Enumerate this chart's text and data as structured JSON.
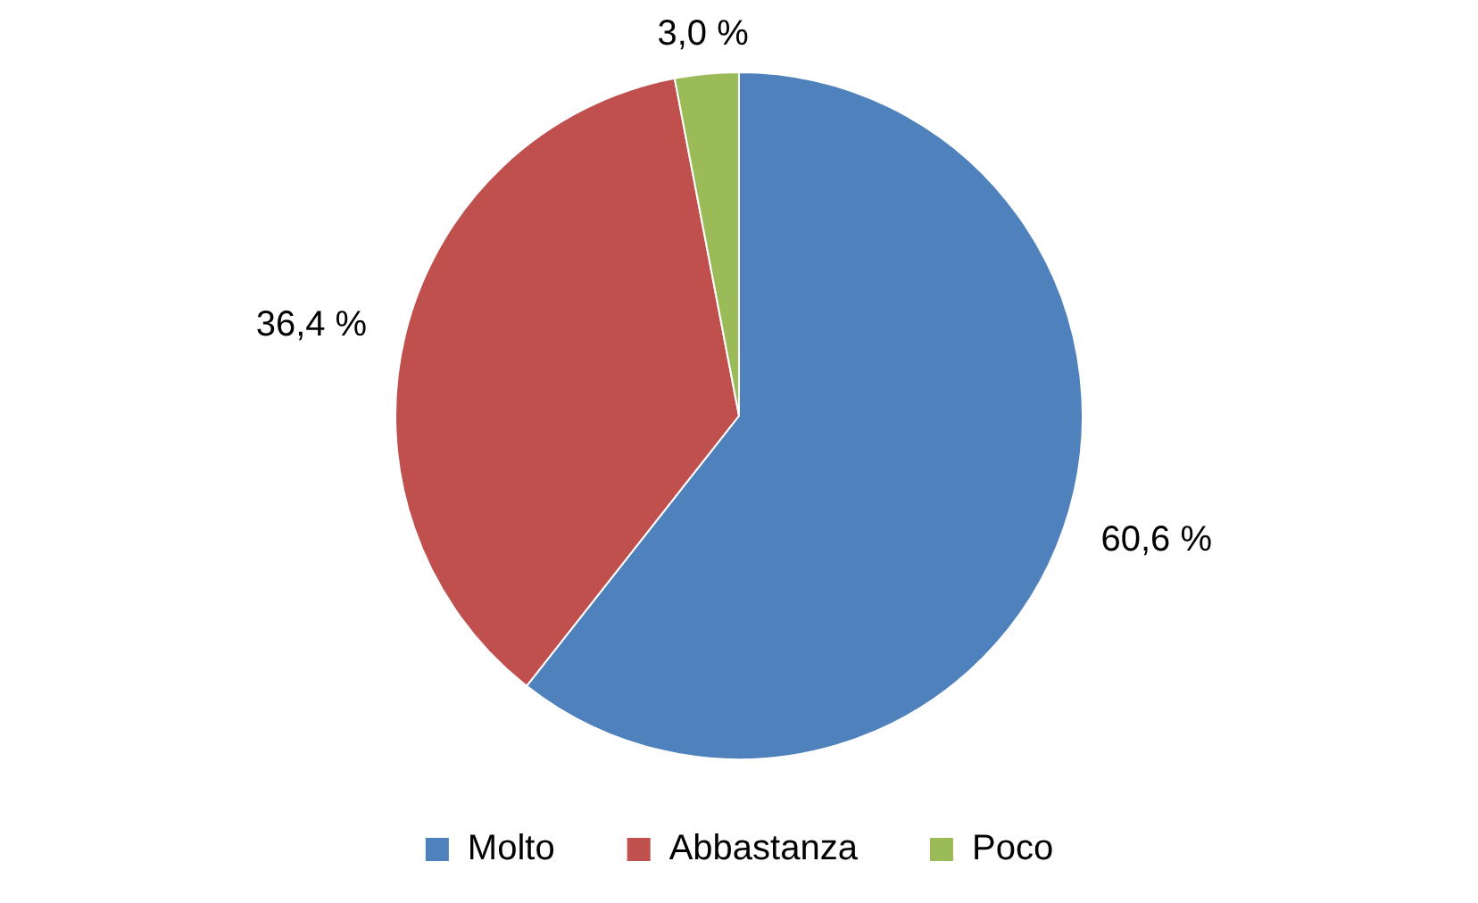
{
  "chart_data": {
    "type": "pie",
    "categories": [
      "Molto",
      "Abbastanza",
      "Poco"
    ],
    "values": [
      60.6,
      36.4,
      3.0
    ],
    "colors": [
      "#4f81bd",
      "#c0504d",
      "#9bbb59"
    ],
    "value_labels": [
      "60,6 %",
      "36,4 %",
      "3,0 %"
    ],
    "legend": "bottom"
  }
}
